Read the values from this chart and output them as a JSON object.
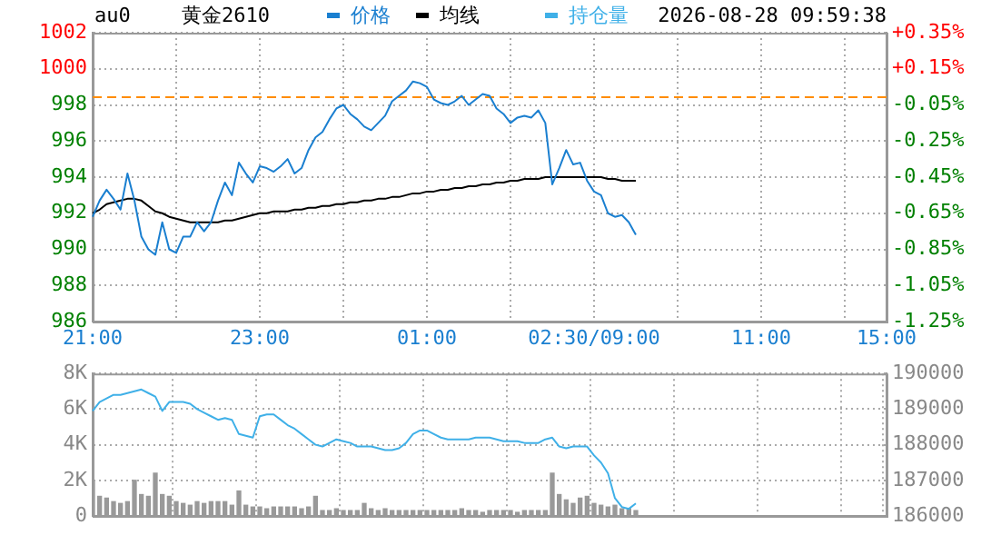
{
  "chart_data": [
    {
      "type": "line",
      "title": "黄金2610",
      "subtitle": "2026-08-28 09:59:38",
      "annotations": [
        "au0"
      ],
      "categories": [
        "21:00",
        null,
        null,
        null,
        null,
        null,
        null,
        null,
        null,
        null,
        null,
        null,
        null,
        null,
        null,
        null,
        null,
        null,
        null,
        null,
        null,
        null,
        null,
        null,
        "23:00",
        null,
        null,
        null,
        null,
        null,
        null,
        null,
        null,
        null,
        null,
        null,
        null,
        null,
        null,
        null,
        null,
        null,
        null,
        null,
        null,
        null,
        null,
        null,
        "01:00",
        null,
        null,
        null,
        null,
        null,
        null,
        null,
        null,
        null,
        null,
        null,
        null,
        null,
        null,
        null,
        null,
        null,
        null,
        null,
        null,
        null,
        null,
        null,
        "02:30/09:00",
        null,
        null,
        null,
        null,
        null,
        null,
        null,
        null,
        null,
        null,
        null,
        null,
        null,
        null,
        null,
        null,
        null,
        null,
        null,
        null,
        null,
        null,
        null,
        "11:00",
        null,
        null,
        null,
        null,
        null,
        null,
        null,
        null,
        null,
        null,
        null,
        null,
        null,
        null,
        null,
        null,
        null,
        "15:00"
      ],
      "series": [
        {
          "name": "价格",
          "color": "#1a7fd0",
          "values": [
            991.8,
            992.7,
            993.3,
            992.8,
            992.2,
            994.2,
            992.7,
            990.7,
            990,
            989.7,
            991.5,
            990,
            989.8,
            990.7,
            990.7,
            991.5,
            991,
            991.5,
            992.7,
            993.7,
            993,
            994.8,
            994.2,
            993.7,
            994.6,
            994.5,
            994.3,
            994.6,
            995,
            994.2,
            994.5,
            995.5,
            996.2,
            996.5,
            997.2,
            997.8,
            998,
            997.5,
            997.2,
            996.8,
            996.6,
            997,
            997.4,
            998.2,
            998.5,
            998.8,
            999.3,
            999.2,
            999,
            998.3,
            998.1,
            998,
            998.2,
            998.5,
            998,
            998.3,
            998.6,
            998.5,
            997.8,
            997.5,
            997,
            997.3,
            997.4,
            997.3,
            997.7,
            997,
            993.6,
            994.5,
            995.5,
            994.7,
            994.8,
            993.8,
            993.2,
            993,
            992,
            991.8,
            991.9,
            991.5,
            990.8,
            null,
            null,
            null,
            null,
            null,
            null,
            null,
            null,
            null,
            null,
            null,
            null,
            null,
            null,
            null,
            null,
            null,
            null,
            null,
            null,
            null,
            null,
            null,
            null,
            null,
            null,
            null,
            null,
            null,
            null,
            null,
            null,
            null,
            null,
            null,
            null
          ]
        },
        {
          "name": "均线",
          "color": "#000000",
          "values": [
            992,
            992.2,
            992.5,
            992.6,
            992.7,
            992.8,
            992.8,
            992.7,
            992.4,
            992.1,
            992,
            991.8,
            991.7,
            991.6,
            991.5,
            991.5,
            991.5,
            991.5,
            991.5,
            991.6,
            991.6,
            991.7,
            991.8,
            991.9,
            992,
            992,
            992.1,
            992.1,
            992.1,
            992.2,
            992.2,
            992.3,
            992.3,
            992.4,
            992.4,
            992.5,
            992.5,
            992.6,
            992.6,
            992.7,
            992.7,
            992.8,
            992.8,
            992.9,
            992.9,
            993,
            993.1,
            993.1,
            993.2,
            993.2,
            993.3,
            993.3,
            993.4,
            993.4,
            993.5,
            993.5,
            993.6,
            993.6,
            993.7,
            993.7,
            993.8,
            993.8,
            993.9,
            993.9,
            993.9,
            994,
            994,
            994,
            994,
            994,
            994,
            994,
            994,
            994,
            993.9,
            993.9,
            993.8,
            993.8,
            993.8,
            null,
            null,
            null,
            null,
            null,
            null,
            null,
            null,
            null,
            null,
            null,
            null,
            null,
            null,
            null,
            null,
            null,
            null,
            null,
            null,
            null,
            null,
            null,
            null,
            null,
            null,
            null,
            null,
            null,
            null,
            null,
            null,
            null,
            null,
            null,
            null
          ]
        }
      ],
      "ylim": [
        986,
        1002
      ],
      "yticks": [
        986,
        988,
        990,
        992,
        994,
        996,
        998,
        1000,
        1002
      ],
      "y2lim": [
        -1.25,
        0.35
      ],
      "y2ticks": [
        {
          "value": -1.25,
          "label": "-1.25%"
        },
        {
          "value": -1.05,
          "label": "-1.05%"
        },
        {
          "value": -0.85,
          "label": "-0.85%"
        },
        {
          "value": -0.65,
          "label": "-0.65%"
        },
        {
          "value": -0.45,
          "label": "-0.45%"
        },
        {
          "value": -0.25,
          "label": "-0.25%"
        },
        {
          "value": -0.05,
          "label": "-0.05%"
        },
        {
          "value": 0.15,
          "label": "+0.15%"
        },
        {
          "value": 0.35,
          "label": "+0.35%"
        }
      ],
      "ref_lines": [
        {
          "axis": "y",
          "value": 998.5,
          "color": "#ff8c00",
          "line_style": "dashed"
        }
      ],
      "grid": true,
      "legend": "top",
      "marker": "none"
    },
    {
      "type": "bar",
      "categories": [
        null,
        null,
        null,
        null,
        null,
        null,
        null,
        null,
        null,
        null,
        null,
        null,
        null,
        null,
        null,
        null,
        null,
        null,
        null,
        null,
        null,
        null,
        null,
        null,
        null,
        null,
        null,
        null,
        null,
        null,
        null,
        null,
        null,
        null,
        null,
        null,
        null,
        null,
        null,
        null,
        null,
        null,
        null,
        null,
        null,
        null,
        null,
        null,
        null,
        null,
        null,
        null,
        null,
        null,
        null,
        null,
        null,
        null,
        null,
        null,
        null,
        null,
        null,
        null,
        null,
        null,
        null,
        null,
        null,
        null,
        null,
        null,
        null,
        null,
        null,
        null,
        null,
        null,
        null,
        null,
        null,
        null,
        null,
        null,
        null,
        null,
        null,
        null,
        null,
        null,
        null,
        null,
        null,
        null,
        null,
        null,
        null,
        null,
        null,
        null,
        null,
        null,
        null,
        null,
        null,
        null,
        null,
        null,
        null,
        null,
        null,
        null,
        null,
        null,
        null
      ],
      "series": [
        {
          "color": "#999999",
          "values": [
            1900,
            1100,
            1000,
            800,
            700,
            800,
            2000,
            1200,
            1100,
            2400,
            1200,
            1100,
            800,
            700,
            600,
            800,
            700,
            800,
            800,
            800,
            600,
            1400,
            600,
            500,
            500,
            400,
            500,
            500,
            500,
            500,
            400,
            500,
            1100,
            300,
            300,
            400,
            300,
            300,
            300,
            700,
            400,
            300,
            400,
            300,
            300,
            300,
            300,
            300,
            300,
            300,
            300,
            300,
            300,
            400,
            300,
            300,
            200,
            300,
            300,
            300,
            300,
            200,
            300,
            300,
            300,
            300,
            2400,
            1200,
            900,
            700,
            1000,
            1100,
            700,
            600,
            500,
            600,
            400,
            400,
            300,
            null,
            null,
            null,
            null,
            null,
            null,
            null,
            null,
            null,
            null,
            null,
            null,
            null,
            null,
            null,
            null,
            null,
            null,
            null,
            null,
            null,
            null,
            null,
            null,
            null,
            null,
            null,
            null,
            null,
            null,
            null,
            null,
            null,
            null,
            null,
            null
          ]
        },
        {
          "name": "持仓量",
          "type": "line",
          "axis": "y2",
          "color": "#3fb0e8",
          "values": [
            188950,
            189200,
            189300,
            189400,
            189400,
            189450,
            189500,
            189550,
            189450,
            189350,
            188950,
            189200,
            189200,
            189200,
            189150,
            189000,
            188900,
            188800,
            188700,
            188750,
            188700,
            188300,
            188250,
            188200,
            188800,
            188850,
            188850,
            188700,
            188550,
            188450,
            188300,
            188150,
            188000,
            187950,
            188050,
            188150,
            188100,
            188050,
            187950,
            187950,
            187950,
            187900,
            187850,
            187850,
            187900,
            188050,
            188300,
            188400,
            188400,
            188300,
            188200,
            188150,
            188150,
            188150,
            188150,
            188200,
            188200,
            188200,
            188150,
            188100,
            188100,
            188100,
            188050,
            188050,
            188050,
            188150,
            188200,
            187950,
            187900,
            187950,
            187950,
            187950,
            187700,
            187500,
            187200,
            186500,
            186250,
            186200,
            186350,
            null,
            null,
            null,
            null,
            null,
            null,
            null,
            null,
            null,
            null,
            null,
            null,
            null,
            null,
            null,
            null,
            null,
            null,
            null,
            null,
            null,
            null,
            null,
            null,
            null,
            null,
            null,
            null,
            null,
            null,
            null,
            null,
            null,
            null,
            null,
            null
          ]
        }
      ],
      "ylim": [
        0,
        8000
      ],
      "yticks": [
        {
          "value": 0,
          "label": "0"
        },
        {
          "value": 2000,
          "label": "2K"
        },
        {
          "value": 4000,
          "label": "4K"
        },
        {
          "value": 6000,
          "label": "6K"
        },
        {
          "value": 8000,
          "label": "8K"
        }
      ],
      "y2lim": [
        186000,
        190000
      ],
      "y2ticks": [
        186000,
        187000,
        188000,
        189000,
        190000
      ],
      "grid": true,
      "legend": "top",
      "marker": "none"
    }
  ]
}
